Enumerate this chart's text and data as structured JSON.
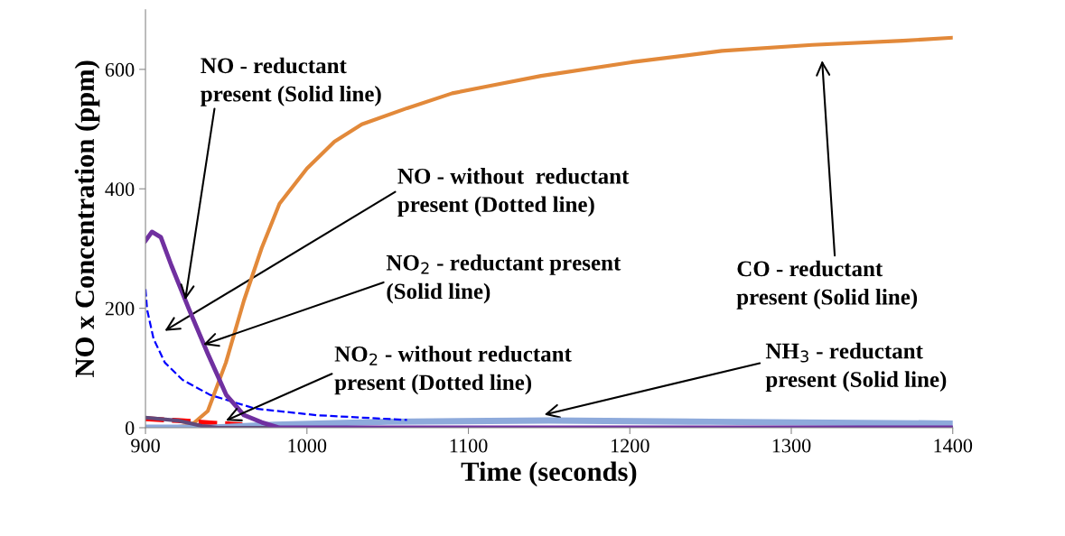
{
  "chart_data": {
    "type": "line",
    "xlabel": "Time (seconds)",
    "ylabel": "NO x Concentration (ppm)",
    "xlim": [
      900,
      1400
    ],
    "xticks": [
      900,
      1000,
      1100,
      1200,
      1300,
      1400
    ],
    "ylim": [
      0,
      700
    ],
    "yticks": [
      0,
      200,
      400,
      600
    ],
    "grid": false,
    "marker": "none",
    "series": [
      {
        "color": "#e2893a",
        "line_style": "solid",
        "x": [
          900,
          915,
          925,
          930,
          938.6,
          949.8,
          961,
          972,
          983,
          1000,
          1017,
          1034,
          1062,
          1090,
          1118,
          1145,
          1201,
          1257,
          1313,
          1369,
          1400
        ],
        "values": [
          0,
          0,
          3,
          8,
          28,
          109,
          213,
          301,
          375,
          434,
          479,
          508,
          535,
          560,
          575,
          589,
          612,
          631,
          641,
          648,
          653
        ]
      },
      {
        "color": "#ff0000",
        "line_style": "dashed",
        "x": [
          900,
          920,
          940,
          960
        ],
        "values": [
          15,
          12,
          8,
          5
        ]
      },
      {
        "color": "#8eaadb",
        "line_style": "solid",
        "x": [
          900,
          940,
          980,
          1050,
          1150,
          1250,
          1400
        ],
        "values": [
          0,
          0,
          5,
          10,
          12,
          10,
          7
        ]
      },
      {
        "color": "#0000ff",
        "line_style": "dashed",
        "x": [
          900,
          901,
          905,
          912,
          923,
          940,
          968,
          1006,
          1062
        ],
        "values": [
          232,
          198,
          149,
          109,
          80,
          55,
          32,
          21,
          13
        ]
      },
      {
        "color": "#604a7b",
        "line_style": "solid",
        "x": [
          900,
          920,
          935,
          945,
          1400
        ],
        "values": [
          17,
          12,
          3,
          0,
          0
        ]
      },
      {
        "color": "#7030a0",
        "line_style": "solid",
        "x": [
          900,
          904,
          909.5,
          916,
          927,
          938.6,
          950,
          961,
          972,
          983,
          1400
        ],
        "values": [
          313,
          328,
          319,
          272,
          198,
          124,
          55,
          21,
          9,
          0,
          0
        ]
      }
    ],
    "annotations": [
      {
        "text": "NO - reductant\npresent (Solid line)",
        "x": 924.6,
        "y": 214
      },
      "NO - without  reductant\npresent (Dotted line)",
      {
        "text": "NO$_{2}$ - reductant present\n(Solid line)",
        "x": 935.8,
        "y": 139
      },
      {
        "text": "NO$_{2}$ - without reductant\npresent (Dotted line)",
        "x": 949.8,
        "y": 12
      },
      "NH$_{3}$ - reductant\npresent (Solid line)",
      "CO - reductant\npresent (Solid line)"
    ]
  }
}
